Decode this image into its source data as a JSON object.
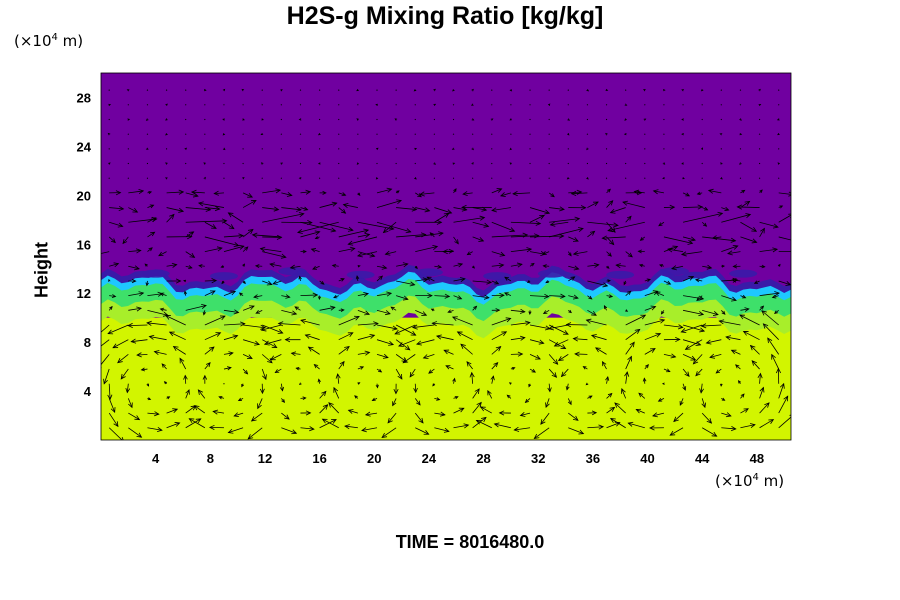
{
  "page": {
    "title": "H2S-g Mixing Ratio [kg/kg]",
    "y_unit_prefix": "(×10",
    "y_unit_exp": "4",
    "y_unit_suffix": " m)",
    "x_unit_prefix": "(×10",
    "x_unit_exp": "4",
    "x_unit_suffix": " m)",
    "ylabel": "Height",
    "time_label": "TIME = 8016480.0"
  },
  "chart_data": {
    "type": "heatmap",
    "title": "H2S-g Mixing Ratio [kg/kg]",
    "xlabel": "",
    "ylabel": "Height",
    "x_unit": "(×10^4 m)",
    "y_unit": "(×10^4 m)",
    "xlim": [
      0,
      50.5
    ],
    "ylim": [
      0,
      30
    ],
    "x_ticks": [
      4,
      8,
      12,
      16,
      20,
      24,
      28,
      32,
      36,
      40,
      44,
      48
    ],
    "y_ticks": [
      4,
      8,
      12,
      16,
      20,
      24,
      28
    ],
    "grid": false,
    "legend": "none",
    "layers": [
      {
        "name": "upper",
        "y_range": [
          13,
          30
        ],
        "color": "#7000a0"
      },
      {
        "name": "interface",
        "y_range": [
          12,
          13
        ],
        "color": "#22aaff"
      },
      {
        "name": "transition",
        "y_range": [
          10,
          12
        ],
        "color": "#4ce35a"
      },
      {
        "name": "lower",
        "y_range": [
          0,
          10
        ],
        "color": "#d2f500"
      }
    ],
    "vectors": "wind arrows overlaid; strong horizontal flow at heights 14–20, circulation cells below 12",
    "colors": {
      "upper": "#7000a0",
      "interface_dark": "#3a1aa8",
      "interface_light": "#1ec8ff",
      "mid": "#3ee06a",
      "lower": "#d2f500",
      "arrow": "#000000"
    }
  }
}
